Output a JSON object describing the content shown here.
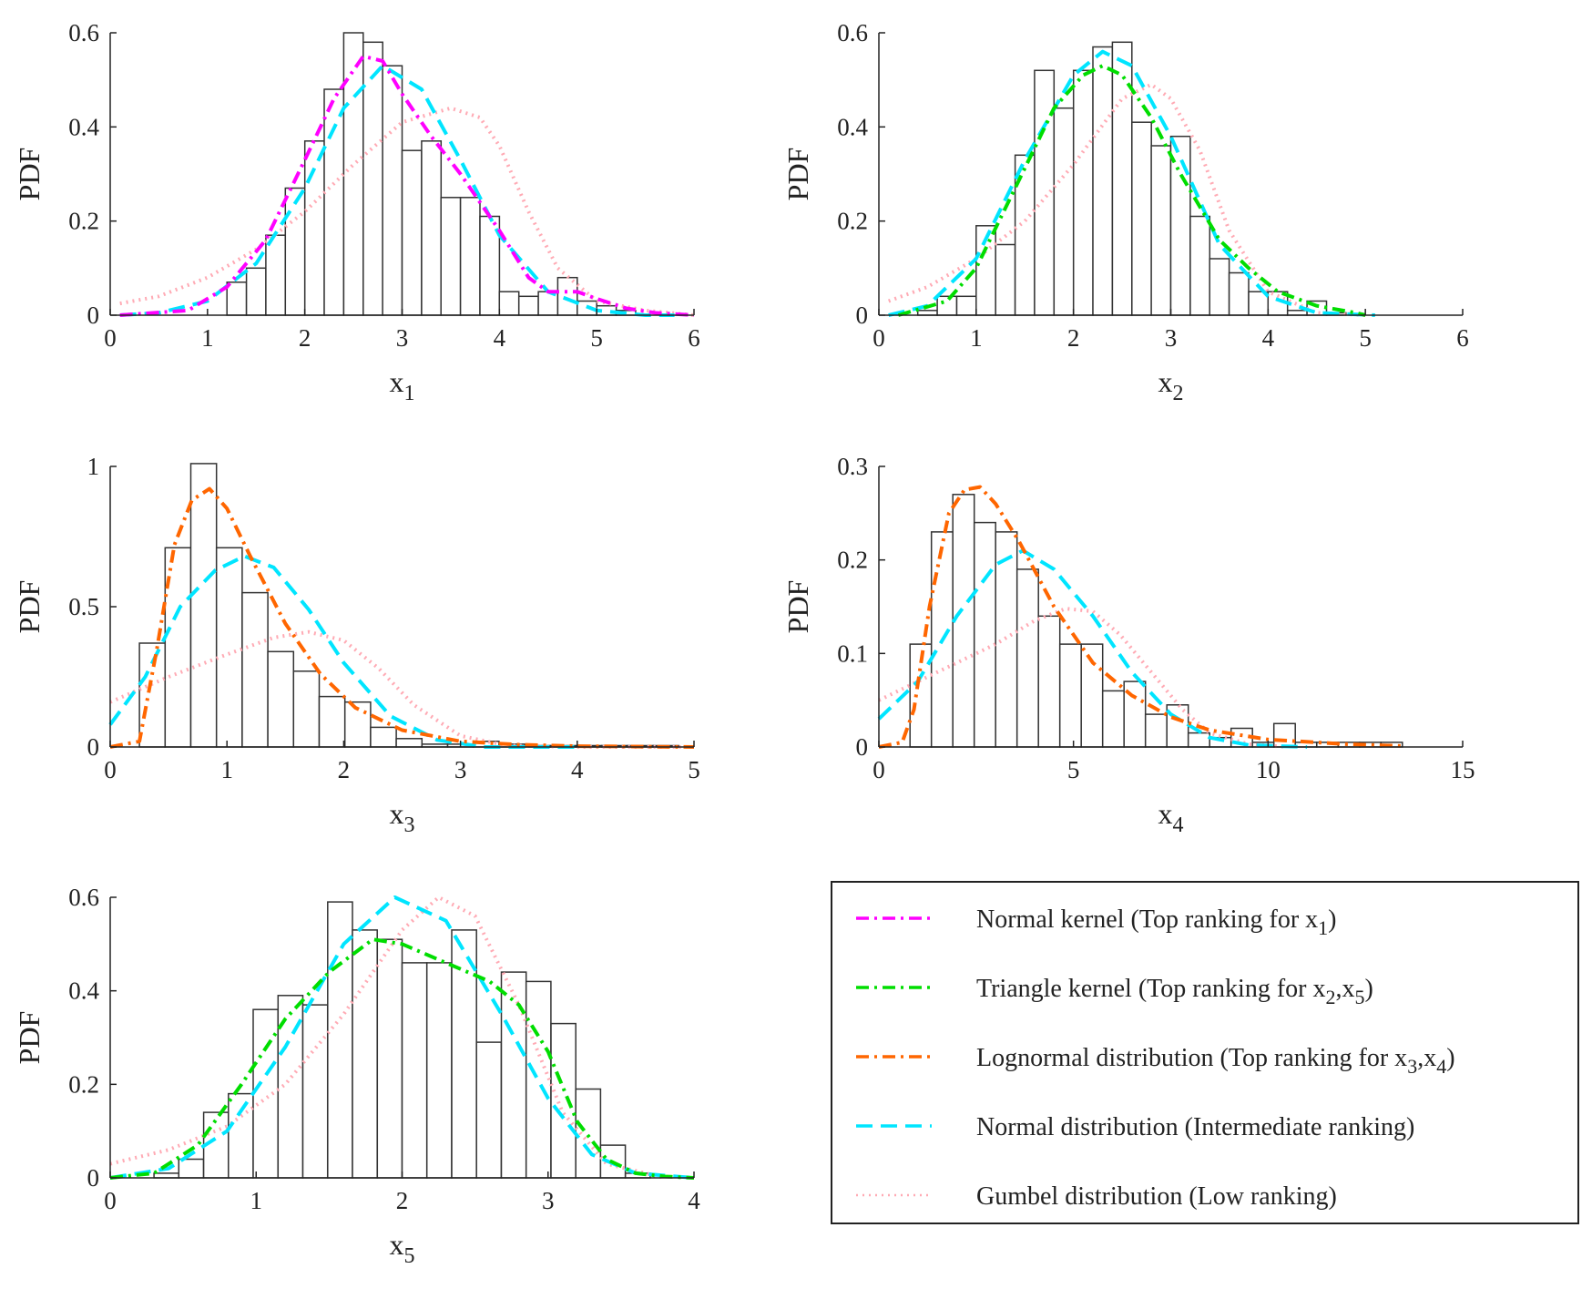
{
  "figure": {
    "y_label": "PDF"
  },
  "legend": {
    "entries": [
      {
        "key": "normal_kernel",
        "name": "Normal kernel (Top ranking for x",
        "subs": [
          {
            "sub": "1"
          }
        ],
        "tail": ")",
        "color": "#ff00ff",
        "dash": "dashdot"
      },
      {
        "key": "triangle_kernel",
        "name": "Triangle kernel (Top ranking for x",
        "subs": [
          {
            "sub": "2"
          },
          {
            "sep": ",x",
            "sub": "5"
          }
        ],
        "tail": ")",
        "color": "#00dd00",
        "dash": "dashdot"
      },
      {
        "key": "lognormal",
        "name": "Lognormal distribution (Top ranking for x",
        "subs": [
          {
            "sub": "3"
          },
          {
            "sep": ",x",
            "sub": "4"
          }
        ],
        "tail": ")",
        "color": "#ff6600",
        "dash": "dashdot"
      },
      {
        "key": "normal",
        "name": "Normal distribution (Intermediate ranking)",
        "subs": [],
        "tail": "",
        "color": "#00e5ff",
        "dash": "dash"
      },
      {
        "key": "gumbel",
        "name": "Gumbel distribution (Low ranking)",
        "subs": [],
        "tail": "",
        "color": "#ffaab4",
        "dash": "dot"
      }
    ]
  },
  "chart_data": [
    {
      "type": "bar",
      "title": "",
      "xlabel": "x",
      "xlabel_sub": "1",
      "ylabel": "PDF",
      "xlim": [
        0,
        6
      ],
      "ylim": [
        0,
        0.6
      ],
      "xticks": [
        "0",
        "1",
        "2",
        "3",
        "4",
        "5",
        "6"
      ],
      "xtick_values": [
        0,
        1,
        2,
        3,
        4,
        5,
        6
      ],
      "yticks": [
        "0",
        "0.2",
        "0.4",
        "0.6"
      ],
      "ytick_values": [
        0,
        0.2,
        0.4,
        0.6
      ],
      "hist": {
        "edges": [
          1.2,
          1.4,
          1.6,
          1.8,
          2.0,
          2.2,
          2.4,
          2.6,
          2.8,
          3.0,
          3.2,
          3.4,
          3.6,
          3.8,
          4.0,
          4.2,
          4.4,
          4.6,
          4.8,
          5.0,
          5.2,
          5.4
        ],
        "values": [
          0.07,
          0.1,
          0.17,
          0.27,
          0.37,
          0.48,
          0.6,
          0.58,
          0.53,
          0.35,
          0.37,
          0.25,
          0.25,
          0.21,
          0.05,
          0.04,
          0.05,
          0.08,
          0.03,
          0.02,
          0.01
        ]
      },
      "series": [
        {
          "name": "Gumbel distribution",
          "key": "gumbel",
          "x": [
            0.1,
            0.5,
            1.0,
            1.5,
            2.0,
            2.5,
            3.0,
            3.5,
            3.8,
            4.0,
            4.3,
            4.6,
            5.0,
            5.5,
            6.0
          ],
          "y": [
            0.025,
            0.04,
            0.08,
            0.14,
            0.22,
            0.32,
            0.41,
            0.44,
            0.42,
            0.36,
            0.22,
            0.1,
            0.03,
            0.01,
            0.0
          ]
        },
        {
          "name": "Normal distribution",
          "key": "normal",
          "x": [
            0.1,
            0.5,
            1.0,
            1.5,
            2.0,
            2.4,
            2.8,
            3.2,
            3.6,
            4.0,
            4.5,
            5.0,
            5.5,
            5.8
          ],
          "y": [
            0.0,
            0.005,
            0.03,
            0.11,
            0.27,
            0.44,
            0.53,
            0.48,
            0.33,
            0.17,
            0.05,
            0.01,
            0.0,
            0.0
          ]
        },
        {
          "name": "Normal kernel",
          "key": "normal_kernel",
          "x": [
            0.1,
            0.8,
            1.2,
            1.6,
            2.0,
            2.3,
            2.6,
            2.8,
            3.0,
            3.3,
            3.6,
            4.0,
            4.3,
            4.5,
            4.8,
            5.0,
            5.3,
            5.6,
            6.0
          ],
          "y": [
            0.0,
            0.01,
            0.06,
            0.16,
            0.33,
            0.46,
            0.55,
            0.54,
            0.47,
            0.38,
            0.3,
            0.18,
            0.08,
            0.05,
            0.05,
            0.035,
            0.015,
            0.005,
            0.0
          ]
        }
      ]
    },
    {
      "type": "bar",
      "title": "",
      "xlabel": "x",
      "xlabel_sub": "2",
      "ylabel": "PDF",
      "xlim": [
        0,
        6
      ],
      "ylim": [
        0,
        0.6
      ],
      "xticks": [
        "0",
        "1",
        "2",
        "3",
        "4",
        "5",
        "6"
      ],
      "xtick_values": [
        0,
        1,
        2,
        3,
        4,
        5,
        6
      ],
      "yticks": [
        "0",
        "0.2",
        "0.4",
        "0.6"
      ],
      "ytick_values": [
        0,
        0.2,
        0.4,
        0.6
      ],
      "hist": {
        "edges": [
          0.4,
          0.6,
          0.8,
          1.0,
          1.2,
          1.4,
          1.6,
          1.8,
          2.0,
          2.2,
          2.4,
          2.6,
          2.8,
          3.0,
          3.2,
          3.4,
          3.6,
          3.8,
          4.0,
          4.2,
          4.4,
          4.6,
          4.8,
          5.0,
          6.0
        ],
        "values": [
          0.01,
          0.04,
          0.04,
          0.19,
          0.15,
          0.34,
          0.52,
          0.44,
          0.52,
          0.57,
          0.58,
          0.41,
          0.36,
          0.38,
          0.21,
          0.12,
          0.09,
          0.05,
          0.05,
          0.01,
          0.03,
          0.005,
          0.0,
          0.0
        ]
      },
      "series": [
        {
          "name": "Gumbel distribution",
          "key": "gumbel",
          "x": [
            0.1,
            0.5,
            1.0,
            1.5,
            2.0,
            2.5,
            2.8,
            3.0,
            3.3,
            3.6,
            4.0,
            4.5,
            5.0
          ],
          "y": [
            0.03,
            0.06,
            0.12,
            0.2,
            0.32,
            0.46,
            0.49,
            0.46,
            0.35,
            0.18,
            0.05,
            0.005,
            0.0
          ]
        },
        {
          "name": "Normal distribution",
          "key": "normal",
          "x": [
            0.1,
            0.5,
            1.0,
            1.5,
            2.0,
            2.3,
            2.6,
            3.0,
            3.5,
            4.0,
            4.5,
            5.1
          ],
          "y": [
            0.0,
            0.02,
            0.12,
            0.33,
            0.51,
            0.56,
            0.53,
            0.38,
            0.15,
            0.04,
            0.005,
            0.0
          ]
        },
        {
          "name": "Triangle kernel",
          "key": "triangle_kernel",
          "x": [
            0.2,
            0.7,
            1.0,
            1.4,
            1.8,
            2.1,
            2.3,
            2.5,
            2.8,
            3.1,
            3.5,
            3.8,
            4.1,
            4.5,
            4.9,
            5.0
          ],
          "y": [
            0.0,
            0.03,
            0.1,
            0.27,
            0.44,
            0.51,
            0.53,
            0.51,
            0.42,
            0.3,
            0.16,
            0.1,
            0.05,
            0.02,
            0.005,
            0.0
          ]
        }
      ]
    },
    {
      "type": "bar",
      "title": "",
      "xlabel": "x",
      "xlabel_sub": "3",
      "ylabel": "PDF",
      "xlim": [
        0,
        5
      ],
      "ylim": [
        0,
        1.0
      ],
      "xticks": [
        "0",
        "1",
        "2",
        "3",
        "4",
        "5"
      ],
      "xtick_values": [
        0,
        1,
        2,
        3,
        4,
        5
      ],
      "yticks": [
        "0",
        "0.5",
        "1"
      ],
      "ytick_values": [
        0,
        0.5,
        1.0
      ],
      "hist": {
        "edges": [
          0.25,
          0.47,
          0.69,
          0.91,
          1.13,
          1.35,
          1.57,
          1.79,
          2.01,
          2.23,
          2.45,
          2.67,
          2.89,
          3.11,
          3.33,
          3.55,
          3.77,
          3.99,
          4.21,
          4.43,
          4.65,
          4.87
        ],
        "values": [
          0.37,
          0.71,
          1.01,
          0.71,
          0.55,
          0.34,
          0.27,
          0.18,
          0.16,
          0.07,
          0.03,
          0.01,
          0.01,
          0.02,
          0.01,
          0.005,
          0.005,
          0.005,
          0.005,
          0.005,
          0.005
        ]
      },
      "series": [
        {
          "name": "Gumbel distribution",
          "key": "gumbel",
          "x": [
            0.0,
            0.5,
            1.0,
            1.4,
            1.7,
            2.0,
            2.3,
            2.6,
            3.0,
            3.4,
            4.0,
            5.0
          ],
          "y": [
            0.16,
            0.25,
            0.33,
            0.39,
            0.41,
            0.38,
            0.28,
            0.15,
            0.04,
            0.005,
            0.0,
            0.0
          ]
        },
        {
          "name": "Normal distribution",
          "key": "normal",
          "x": [
            0.0,
            0.3,
            0.6,
            0.9,
            1.15,
            1.4,
            1.7,
            2.0,
            2.4,
            2.8,
            3.2,
            4.0
          ],
          "y": [
            0.08,
            0.25,
            0.5,
            0.63,
            0.68,
            0.64,
            0.49,
            0.3,
            0.11,
            0.025,
            0.0,
            0.0
          ]
        },
        {
          "name": "Lognormal distribution",
          "key": "lognormal",
          "x": [
            0.0,
            0.25,
            0.4,
            0.55,
            0.7,
            0.85,
            1.0,
            1.2,
            1.5,
            1.8,
            2.1,
            2.5,
            3.0,
            3.5,
            4.0,
            5.0
          ],
          "y": [
            0.0,
            0.02,
            0.35,
            0.72,
            0.88,
            0.92,
            0.85,
            0.68,
            0.44,
            0.26,
            0.14,
            0.06,
            0.02,
            0.008,
            0.003,
            0.0
          ]
        }
      ]
    },
    {
      "type": "bar",
      "title": "",
      "xlabel": "x",
      "xlabel_sub": "4",
      "ylabel": "PDF",
      "xlim": [
        0,
        15
      ],
      "ylim": [
        0,
        0.3
      ],
      "xticks": [
        "0",
        "5",
        "10",
        "15"
      ],
      "xtick_values": [
        0,
        5,
        10,
        15
      ],
      "yticks": [
        "0",
        "0.1",
        "0.2",
        "0.3"
      ],
      "ytick_values": [
        0,
        0.1,
        0.2,
        0.3
      ],
      "hist": {
        "edges": [
          0.8,
          1.35,
          1.9,
          2.45,
          3.0,
          3.55,
          4.1,
          4.65,
          5.2,
          5.75,
          6.3,
          6.85,
          7.4,
          7.95,
          8.5,
          9.05,
          9.6,
          10.15,
          10.7,
          11.25,
          11.8,
          12.35,
          12.9,
          13.45,
          15.0
        ],
        "values": [
          0.11,
          0.23,
          0.27,
          0.24,
          0.23,
          0.19,
          0.14,
          0.11,
          0.11,
          0.06,
          0.07,
          0.035,
          0.045,
          0.015,
          0.01,
          0.02,
          0.005,
          0.025,
          0.005,
          0.005,
          0.005,
          0.005,
          0.005,
          0.0
        ]
      },
      "series": [
        {
          "name": "Gumbel distribution",
          "key": "gumbel",
          "x": [
            0.0,
            1.0,
            2.0,
            3.0,
            4.0,
            4.8,
            5.5,
            6.2,
            7.0,
            7.8,
            8.5,
            9.5,
            10.5
          ],
          "y": [
            0.05,
            0.07,
            0.09,
            0.11,
            0.135,
            0.148,
            0.145,
            0.12,
            0.08,
            0.04,
            0.015,
            0.003,
            0.0
          ]
        },
        {
          "name": "Normal distribution",
          "key": "normal",
          "x": [
            0.0,
            1.0,
            2.0,
            3.0,
            3.7,
            4.5,
            5.5,
            6.5,
            7.5,
            8.5,
            9.5,
            11.0
          ],
          "y": [
            0.03,
            0.07,
            0.14,
            0.195,
            0.21,
            0.19,
            0.14,
            0.08,
            0.035,
            0.01,
            0.002,
            0.0
          ]
        },
        {
          "name": "Lognormal distribution",
          "key": "lognormal",
          "x": [
            0.0,
            0.6,
            0.9,
            1.3,
            1.8,
            2.2,
            2.6,
            3.0,
            3.6,
            4.5,
            5.5,
            6.5,
            7.5,
            8.5,
            10.0,
            12.0,
            13.5
          ],
          "y": [
            0.0,
            0.005,
            0.04,
            0.15,
            0.25,
            0.275,
            0.278,
            0.26,
            0.22,
            0.15,
            0.09,
            0.055,
            0.032,
            0.018,
            0.008,
            0.003,
            0.001
          ]
        }
      ]
    },
    {
      "type": "bar",
      "title": "",
      "xlabel": "x",
      "xlabel_sub": "5",
      "ylabel": "PDF",
      "xlim": [
        0,
        4
      ],
      "ylim": [
        0,
        0.6
      ],
      "xticks": [
        "0",
        "1",
        "2",
        "3",
        "4"
      ],
      "xtick_values": [
        0,
        1,
        2,
        3,
        4
      ],
      "yticks": [
        "0",
        "0.2",
        "0.4",
        "0.6"
      ],
      "ytick_values": [
        0,
        0.2,
        0.4,
        0.6
      ],
      "hist": {
        "edges": [
          0.3,
          0.47,
          0.64,
          0.81,
          0.98,
          1.15,
          1.32,
          1.49,
          1.66,
          1.83,
          2.0,
          2.17,
          2.34,
          2.51,
          2.68,
          2.85,
          3.02,
          3.19,
          3.36,
          3.53,
          3.7
        ],
        "values": [
          0.01,
          0.04,
          0.14,
          0.18,
          0.36,
          0.39,
          0.37,
          0.59,
          0.53,
          0.51,
          0.46,
          0.46,
          0.53,
          0.29,
          0.44,
          0.42,
          0.33,
          0.19,
          0.07,
          0.01
        ]
      },
      "series": [
        {
          "name": "Gumbel distribution",
          "key": "gumbel",
          "x": [
            0.0,
            0.4,
            0.8,
            1.2,
            1.6,
            2.0,
            2.25,
            2.5,
            2.8,
            3.1,
            3.4,
            3.8
          ],
          "y": [
            0.03,
            0.06,
            0.11,
            0.2,
            0.35,
            0.53,
            0.6,
            0.56,
            0.37,
            0.14,
            0.03,
            0.0
          ]
        },
        {
          "name": "Normal distribution",
          "key": "normal",
          "x": [
            0.0,
            0.4,
            0.8,
            1.2,
            1.6,
            1.95,
            2.3,
            2.7,
            3.0,
            3.3,
            3.6,
            4.0
          ],
          "y": [
            0.0,
            0.02,
            0.1,
            0.28,
            0.5,
            0.6,
            0.55,
            0.34,
            0.17,
            0.05,
            0.01,
            0.0
          ]
        },
        {
          "name": "Triangle kernel",
          "key": "triangle_kernel",
          "x": [
            0.0,
            0.3,
            0.6,
            0.9,
            1.2,
            1.5,
            1.8,
            2.0,
            2.3,
            2.6,
            2.8,
            3.0,
            3.2,
            3.4,
            3.6,
            3.8,
            4.0
          ],
          "y": [
            0.0,
            0.01,
            0.07,
            0.2,
            0.34,
            0.44,
            0.51,
            0.5,
            0.46,
            0.42,
            0.37,
            0.27,
            0.12,
            0.04,
            0.01,
            0.003,
            0.0
          ]
        }
      ]
    }
  ]
}
